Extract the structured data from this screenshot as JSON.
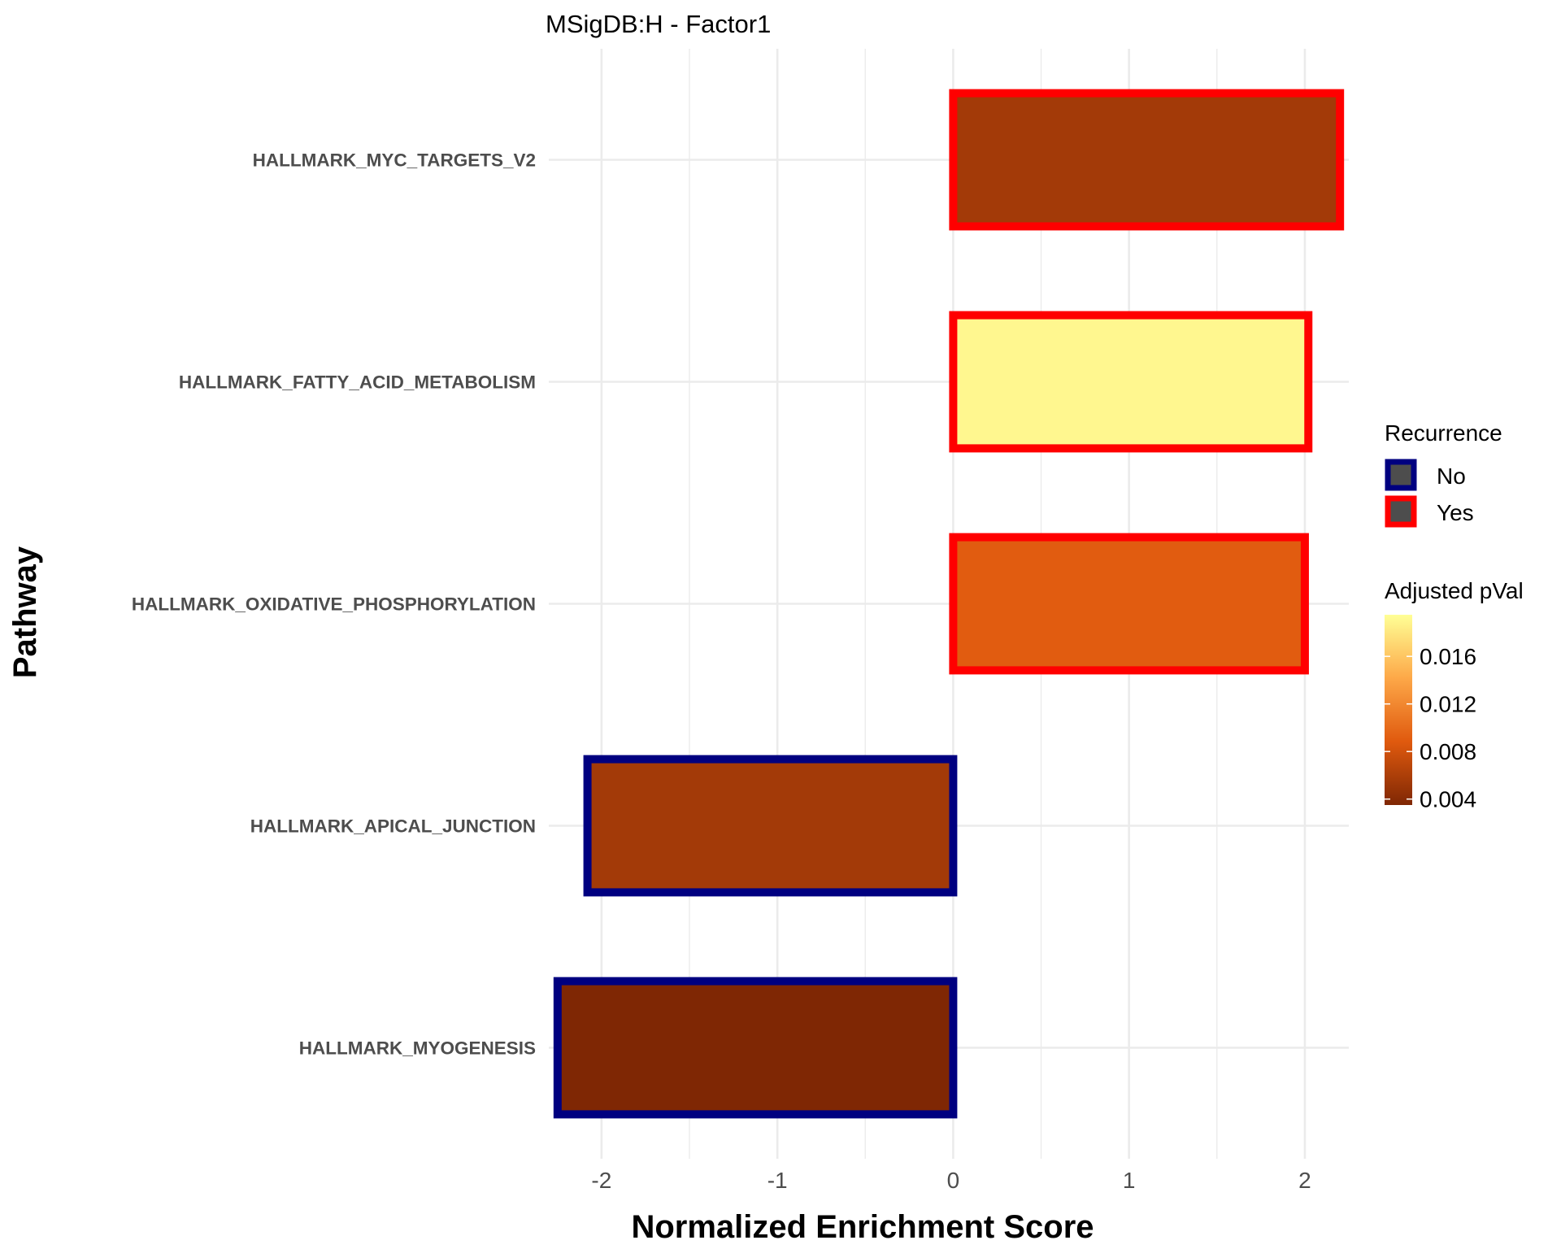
{
  "chart_data": {
    "type": "bar",
    "orientation": "horizontal",
    "title": "MSigDB:H - Factor1",
    "xlabel": "Normalized Enrichment Score",
    "ylabel": "Pathway",
    "xlim": [
      -2.3,
      2.25
    ],
    "x_ticks": [
      -2,
      -1,
      0,
      1,
      2
    ],
    "x_tick_labels": [
      "-2",
      "-1",
      "0",
      "1",
      "2"
    ],
    "grid": true,
    "categories": [
      "HALLMARK_MYC_TARGETS_V2",
      "HALLMARK_FATTY_ACID_METABOLISM",
      "HALLMARK_OXIDATIVE_PHOSPHORYLATION",
      "HALLMARK_APICAL_JUNCTION",
      "HALLMARK_MYOGENESIS"
    ],
    "values": [
      2.2,
      2.02,
      2.0,
      -2.08,
      -2.25
    ],
    "adjusted_pval": [
      0.0055,
      0.019,
      0.009,
      0.0055,
      0.0035
    ],
    "recurrence": [
      "Yes",
      "Yes",
      "Yes",
      "No",
      "No"
    ],
    "recurrence_colors": {
      "No": "#000080",
      "Yes": "#ff0000"
    },
    "legend_placement": "right",
    "legend": {
      "recurrence_title": "Recurrence",
      "recurrence_entries": [
        "No",
        "Yes"
      ],
      "swatch_fill": "#4d4d4d",
      "pval_title": "Adjusted pVal",
      "pval_ticks": [
        0.004,
        0.008,
        0.012,
        0.016
      ],
      "pval_tick_labels": [
        "0.004",
        "0.008",
        "0.012",
        "0.016"
      ],
      "pval_range": [
        0.0035,
        0.0195
      ],
      "colorscale": [
        "#7f2704",
        "#e05a0e",
        "#fda848",
        "#ffff96"
      ]
    }
  }
}
